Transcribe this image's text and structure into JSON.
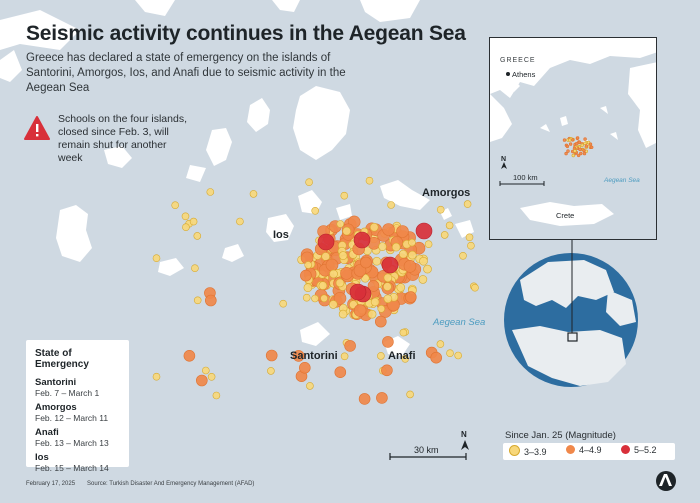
{
  "header": {
    "title": "Seismic activity continues in the Aegean Sea",
    "subtitle": "Greece has declared a state of emergency on the islands of Santorini, Amorgos, Ios, and Anafi due to seismic activity in the Aegean Sea"
  },
  "note": "Schools on the four islands, closed since Feb. 3, will remain shut for another week",
  "places": {
    "amorgos": "Amorgos",
    "ios": "Ios",
    "santorini": "Santorini",
    "anafi": "Anafi",
    "sea": "Aegean Sea"
  },
  "emergency": {
    "heading": "State of Emergency",
    "items": [
      {
        "island": "Santorini",
        "dates": "Feb.  7 – March 1"
      },
      {
        "island": "Amorgos",
        "dates": "Feb. 12 – March 11"
      },
      {
        "island": "Anafi",
        "dates": "Feb. 13 – March 13"
      },
      {
        "island": "Ios",
        "dates": "Feb. 15 – March 14"
      }
    ]
  },
  "inset": {
    "country": "GREECE",
    "capital": "Athens",
    "crete": "Crete",
    "sea": "Aegean Sea",
    "scale": "100 km",
    "north": "N"
  },
  "main_scale": {
    "label": "30 km",
    "north": "N"
  },
  "magnitude_legend": {
    "title": "Since Jan. 25 (Magnitude)",
    "classes": [
      {
        "label": "3–3.9",
        "color": "#f7d77a"
      },
      {
        "label": "4–4.9",
        "color": "#f0884a"
      },
      {
        "label": "5–5.2",
        "color": "#d8303a"
      }
    ]
  },
  "footer": {
    "date": "February 17, 2025",
    "source": "Source: Turkish Disaster And Emergency Management (AFAD)"
  },
  "colors": {
    "land": "#ffffff",
    "sea": "#cfd9e2",
    "globe": "#2d6da0"
  }
}
